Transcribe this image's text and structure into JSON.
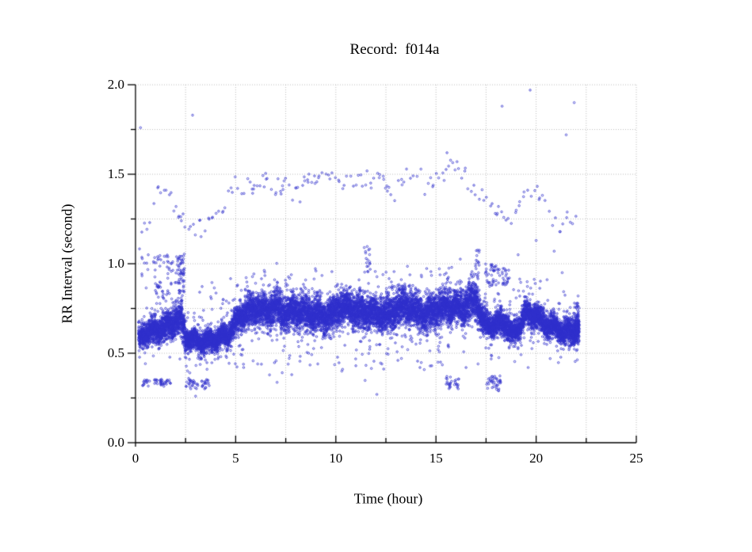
{
  "chart_data": {
    "type": "scatter",
    "title": "Record:  f014a",
    "xlabel": "Time (hour)",
    "ylabel": "RR Interval (second)",
    "xlim": [
      0,
      25
    ],
    "ylim": [
      0.0,
      2.0
    ],
    "x_major_ticks": [
      0,
      5,
      10,
      15,
      20,
      25
    ],
    "x_minor_step": 2.5,
    "y_major_ticks": [
      0.0,
      0.5,
      1.0,
      1.5,
      2.0
    ],
    "y_minor_step": 0.25,
    "x_tick_labels": [
      "0",
      "5",
      "10",
      "15",
      "20",
      "25"
    ],
    "y_tick_labels": [
      "0.0",
      "0.5",
      "1.0",
      "1.5",
      "2.0"
    ],
    "grid": {
      "style": "dotted",
      "color": "#bcbcbc"
    },
    "marker": {
      "shape": "open-circle",
      "color": "#2e2ecc",
      "radius_px": 1.25
    },
    "seed": 7,
    "data_extent_hours": [
      0.15,
      22.15
    ],
    "main_band": {
      "description": "dense RR-interval band ~0.55-0.85 s over 0.15-22.15 h",
      "t_range": [
        0.15,
        22.15
      ],
      "points_per_hour": 650,
      "mean_profile": [
        [
          0.15,
          0.57
        ],
        [
          0.5,
          0.62
        ],
        [
          1.0,
          0.63
        ],
        [
          1.5,
          0.64
        ],
        [
          2.0,
          0.68
        ],
        [
          2.3,
          0.7
        ],
        [
          2.5,
          0.58
        ],
        [
          3.0,
          0.57
        ],
        [
          3.5,
          0.56
        ],
        [
          4.0,
          0.58
        ],
        [
          4.5,
          0.6
        ],
        [
          4.8,
          0.63
        ],
        [
          5.2,
          0.7
        ],
        [
          5.6,
          0.74
        ],
        [
          6.0,
          0.75
        ],
        [
          6.5,
          0.73
        ],
        [
          7.0,
          0.76
        ],
        [
          7.5,
          0.72
        ],
        [
          8.0,
          0.74
        ],
        [
          8.5,
          0.73
        ],
        [
          9.0,
          0.71
        ],
        [
          9.5,
          0.7
        ],
        [
          10.0,
          0.74
        ],
        [
          10.5,
          0.76
        ],
        [
          11.0,
          0.73
        ],
        [
          11.5,
          0.74
        ],
        [
          12.0,
          0.72
        ],
        [
          12.5,
          0.71
        ],
        [
          13.0,
          0.74
        ],
        [
          13.5,
          0.76
        ],
        [
          14.0,
          0.73
        ],
        [
          14.5,
          0.72
        ],
        [
          15.0,
          0.74
        ],
        [
          15.5,
          0.76
        ],
        [
          16.0,
          0.75
        ],
        [
          16.5,
          0.77
        ],
        [
          17.0,
          0.8
        ],
        [
          17.3,
          0.68
        ],
        [
          17.6,
          0.65
        ],
        [
          18.0,
          0.66
        ],
        [
          18.4,
          0.68
        ],
        [
          18.8,
          0.6
        ],
        [
          19.2,
          0.66
        ],
        [
          19.5,
          0.72
        ],
        [
          20.0,
          0.71
        ],
        [
          20.5,
          0.66
        ],
        [
          21.0,
          0.64
        ],
        [
          21.5,
          0.61
        ],
        [
          21.8,
          0.62
        ],
        [
          22.1,
          0.65
        ]
      ],
      "halfwidth_profile": [
        [
          0.15,
          0.05
        ],
        [
          1.0,
          0.055
        ],
        [
          2.0,
          0.07
        ],
        [
          2.45,
          0.08
        ],
        [
          2.55,
          0.045
        ],
        [
          4.8,
          0.045
        ],
        [
          5.5,
          0.075
        ],
        [
          8.0,
          0.08
        ],
        [
          16.0,
          0.08
        ],
        [
          17.0,
          0.09
        ],
        [
          17.3,
          0.06
        ],
        [
          19.0,
          0.055
        ],
        [
          21.0,
          0.05
        ],
        [
          22.15,
          0.06
        ]
      ]
    },
    "upper_track": {
      "description": "sparse track ~1.1-1.6 s (long intervals) mirroring the band",
      "t_range": [
        0.2,
        22.0
      ],
      "jitter": 0.035,
      "min_step": 0.06,
      "rand_step": 0.16,
      "profile": [
        [
          0.2,
          1.12
        ],
        [
          0.5,
          1.18
        ],
        [
          0.8,
          1.28
        ],
        [
          1.2,
          1.38
        ],
        [
          1.5,
          1.42
        ],
        [
          1.8,
          1.35
        ],
        [
          2.2,
          1.3
        ],
        [
          2.6,
          1.22
        ],
        [
          3.0,
          1.18
        ],
        [
          3.4,
          1.2
        ],
        [
          3.8,
          1.28
        ],
        [
          4.2,
          1.33
        ],
        [
          4.6,
          1.38
        ],
        [
          5.0,
          1.42
        ],
        [
          5.5,
          1.4
        ],
        [
          6.0,
          1.45
        ],
        [
          6.5,
          1.43
        ],
        [
          7.0,
          1.47
        ],
        [
          7.5,
          1.45
        ],
        [
          8.0,
          1.43
        ],
        [
          8.5,
          1.47
        ],
        [
          9.0,
          1.45
        ],
        [
          9.5,
          1.5
        ],
        [
          10.0,
          1.47
        ],
        [
          10.5,
          1.45
        ],
        [
          11.0,
          1.48
        ],
        [
          11.5,
          1.45
        ],
        [
          12.0,
          1.47
        ],
        [
          12.5,
          1.43
        ],
        [
          13.0,
          1.46
        ],
        [
          13.5,
          1.48
        ],
        [
          14.0,
          1.5
        ],
        [
          14.5,
          1.45
        ],
        [
          15.0,
          1.47
        ],
        [
          15.5,
          1.55
        ],
        [
          15.8,
          1.58
        ],
        [
          16.2,
          1.5
        ],
        [
          16.6,
          1.44
        ],
        [
          17.0,
          1.4
        ],
        [
          17.5,
          1.35
        ],
        [
          18.0,
          1.28
        ],
        [
          18.5,
          1.25
        ],
        [
          19.0,
          1.28
        ],
        [
          19.5,
          1.35
        ],
        [
          20.0,
          1.42
        ],
        [
          20.3,
          1.38
        ],
        [
          20.8,
          1.28
        ],
        [
          21.2,
          1.22
        ],
        [
          21.6,
          1.2
        ],
        [
          22.0,
          1.22
        ]
      ]
    },
    "clusters": [
      {
        "t": [
          0.35,
          1.75
        ],
        "v": [
          0.315,
          0.355
        ],
        "n": 48
      },
      {
        "t": [
          2.52,
          3.12
        ],
        "v": [
          0.3,
          0.365
        ],
        "n": 26
      },
      {
        "t": [
          3.3,
          3.68
        ],
        "v": [
          0.3,
          0.35
        ],
        "n": 18
      },
      {
        "t": [
          15.45,
          15.8
        ],
        "v": [
          0.3,
          0.38
        ],
        "n": 16
      },
      {
        "t": [
          15.9,
          16.15
        ],
        "v": [
          0.3,
          0.36
        ],
        "n": 12
      },
      {
        "t": [
          17.5,
          18.25
        ],
        "v": [
          0.29,
          0.375
        ],
        "n": 38
      },
      {
        "t": [
          17.45,
          18.2
        ],
        "v": [
          0.87,
          1.0
        ],
        "n": 42
      },
      {
        "t": [
          18.3,
          18.65
        ],
        "v": [
          0.88,
          0.975
        ],
        "n": 22
      },
      {
        "t": [
          11.3,
          11.85
        ],
        "v": [
          0.95,
          1.1
        ],
        "n": 18
      },
      {
        "t": [
          16.95,
          17.2
        ],
        "v": [
          0.78,
          1.08
        ],
        "n": 26
      },
      {
        "t": [
          2.1,
          2.45
        ],
        "v": [
          0.8,
          1.06
        ],
        "n": 40
      },
      {
        "t": [
          21.85,
          22.15
        ],
        "v": [
          0.55,
          0.78
        ],
        "n": 70
      }
    ],
    "sparse_regions": [
      {
        "t": [
          0.25,
          2.45
        ],
        "v": [
          0.8,
          1.05
        ],
        "n": 85
      },
      {
        "t": [
          2.6,
          4.9
        ],
        "v": [
          0.68,
          0.92
        ],
        "n": 18
      },
      {
        "t": [
          2.5,
          5.0
        ],
        "v": [
          0.44,
          0.55
        ],
        "n": 12
      },
      {
        "t": [
          5.0,
          16.5
        ],
        "v": [
          0.42,
          0.62
        ],
        "n": 75
      },
      {
        "t": [
          5.0,
          16.5
        ],
        "v": [
          0.85,
          1.03
        ],
        "n": 40
      },
      {
        "t": [
          18.6,
          21.5
        ],
        "v": [
          0.8,
          0.93
        ],
        "n": 15
      },
      {
        "t": [
          5.0,
          15.0
        ],
        "v": [
          0.33,
          0.42
        ],
        "n": 8
      }
    ],
    "outliers": [
      [
        0.25,
        1.76
      ],
      [
        2.85,
        1.83
      ],
      [
        15.55,
        1.62
      ],
      [
        16.05,
        1.57
      ],
      [
        18.3,
        1.88
      ],
      [
        19.7,
        1.97
      ],
      [
        21.5,
        1.72
      ],
      [
        21.9,
        1.9
      ],
      [
        3.0,
        0.26
      ],
      [
        12.05,
        0.27
      ],
      [
        5.4,
        0.42
      ],
      [
        6.1,
        0.44
      ],
      [
        7.8,
        0.38
      ],
      [
        9.1,
        0.44
      ],
      [
        10.3,
        0.4
      ],
      [
        11.0,
        0.43
      ],
      [
        12.3,
        0.44
      ],
      [
        13.1,
        0.46
      ],
      [
        14.2,
        0.42
      ],
      [
        15.1,
        0.45
      ],
      [
        16.5,
        0.42
      ],
      [
        19.6,
        0.42
      ],
      [
        20.7,
        0.47
      ],
      [
        17.1,
        0.44
      ],
      [
        20.0,
        1.13
      ],
      [
        20.9,
        1.07
      ],
      [
        19.1,
        1.05
      ],
      [
        21.3,
        0.95
      ]
    ]
  }
}
